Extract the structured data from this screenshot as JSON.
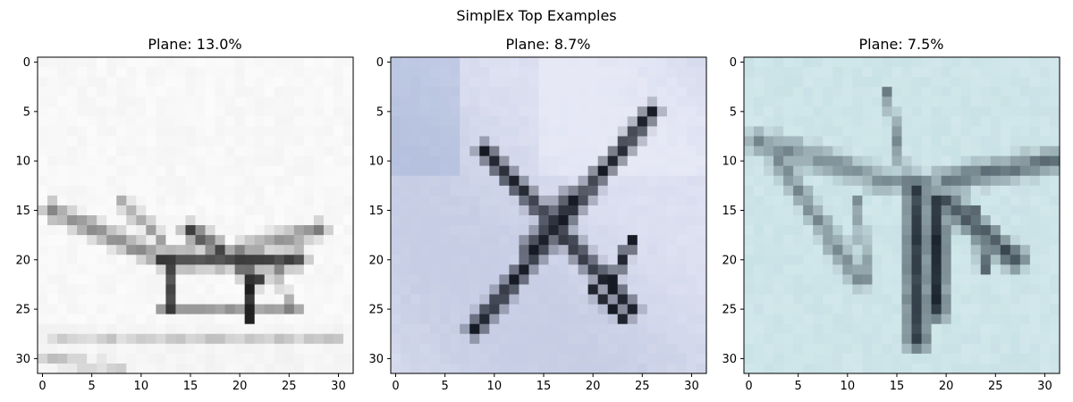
{
  "figure": {
    "suptitle": "SimplEx Top Examples"
  },
  "chart_data": [
    {
      "type": "heatmap",
      "title": "Plane: 13.0%",
      "content": "32x32 grayscale image of a plane",
      "xlim": [
        -0.5,
        31.5
      ],
      "ylim": [
        31.5,
        -0.5
      ],
      "xticks": [
        0,
        5,
        10,
        15,
        20,
        25,
        30
      ],
      "yticks": [
        0,
        5,
        10,
        15,
        20,
        25,
        30
      ],
      "grid": false,
      "colors": {
        "background": "#efefef",
        "dark": "#1c1c1c",
        "mid": "#8c8c8c",
        "light": "#c8c8c8"
      }
    },
    {
      "type": "heatmap",
      "title": "Plane: 8.7%",
      "content": "32x32 image of a plane on blue sky",
      "xlim": [
        -0.5,
        31.5
      ],
      "ylim": [
        31.5,
        -0.5
      ],
      "xticks": [
        0,
        5,
        10,
        15,
        20,
        25,
        30
      ],
      "yticks": [
        0,
        5,
        10,
        15,
        20,
        25,
        30
      ],
      "grid": false,
      "colors": {
        "background": "#c6cde4",
        "dark": "#151a24",
        "mid": "#6f7d98",
        "light": "#e6e8f6"
      }
    },
    {
      "type": "heatmap",
      "title": "Plane: 7.5%",
      "content": "32x32 image of a plane on pale cyan sky",
      "xlim": [
        -0.5,
        31.5
      ],
      "ylim": [
        31.5,
        -0.5
      ],
      "xticks": [
        0,
        5,
        10,
        15,
        20,
        25,
        30
      ],
      "yticks": [
        0,
        5,
        10,
        15,
        20,
        25,
        30
      ],
      "grid": false,
      "colors": {
        "background": "#c2dde2",
        "dark": "#1b2530",
        "mid": "#6e8893",
        "light": "#d8ecef"
      }
    }
  ]
}
